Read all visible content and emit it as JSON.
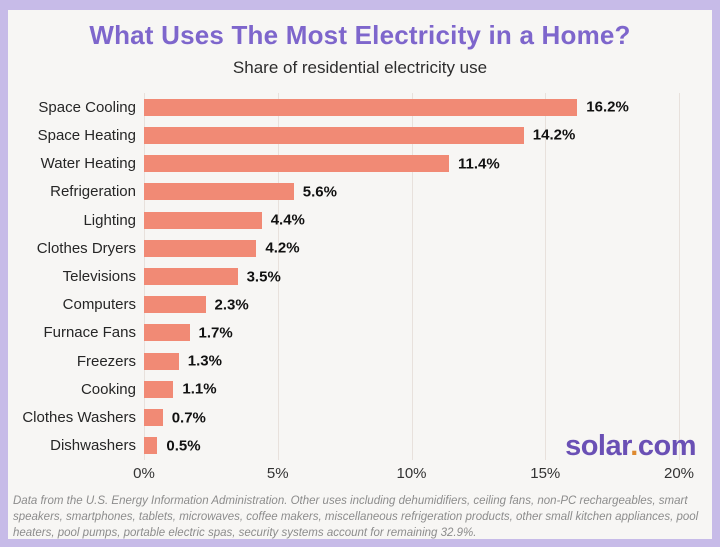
{
  "title": "What Uses The Most Electricity in a Home?",
  "subtitle": "Share of residential electricity use",
  "chart_data": {
    "type": "bar",
    "orientation": "horizontal",
    "title": "What Uses The Most Electricity in a Home?",
    "subtitle": "Share of residential electricity use",
    "categories": [
      "Space Cooling",
      "Space Heating",
      "Water Heating",
      "Refrigeration",
      "Lighting",
      "Clothes Dryers",
      "Televisions",
      "Computers",
      "Furnace Fans",
      "Freezers",
      "Cooking",
      "Clothes Washers",
      "Dishwashers"
    ],
    "values": [
      16.2,
      14.2,
      11.4,
      5.6,
      4.4,
      4.2,
      3.5,
      2.3,
      1.7,
      1.3,
      1.1,
      0.7,
      0.5
    ],
    "value_labels": [
      "16.2%",
      "14.2%",
      "11.4%",
      "5.6%",
      "4.4%",
      "4.2%",
      "3.5%",
      "2.3%",
      "1.7%",
      "1.3%",
      "1.1%",
      "0.7%",
      "0.5%"
    ],
    "xlabel": "",
    "ylabel": "",
    "xlim": [
      0,
      20
    ],
    "x_ticks": [
      "0%",
      "5%",
      "10%",
      "15%",
      "20%"
    ],
    "grid": true,
    "legend": "none",
    "bar_color": "#F18A75"
  },
  "footnote": {
    "text": "Data from the U.S. Energy Information Administration. Other uses including dehumidifiers, ceiling fans, non-PC rechargeables, smart speakers, smartphones, tablets, microwaves, coffee makers, miscellaneous refrigeration products, other small kitchen appliances, pool heaters, pool pumps, portable electric spas, security systems account for remaining 32.9%."
  },
  "logo": {
    "prefix": "solar",
    "dot": ".",
    "suffix": "com"
  },
  "colors": {
    "border": "#C7BBE8",
    "panel_bg": "#F7F6F4",
    "title": "#7E66CC",
    "subtitle_text": "#2D2D2D",
    "bar": "#F18A75",
    "gridline": "#E8E1DC",
    "label_text": "#262626",
    "value_text": "#111111",
    "tick_text": "#333333",
    "footnote_text": "#8C8C8C",
    "logo_purple": "#6A50B5",
    "logo_dot": "#DE8A2F"
  }
}
